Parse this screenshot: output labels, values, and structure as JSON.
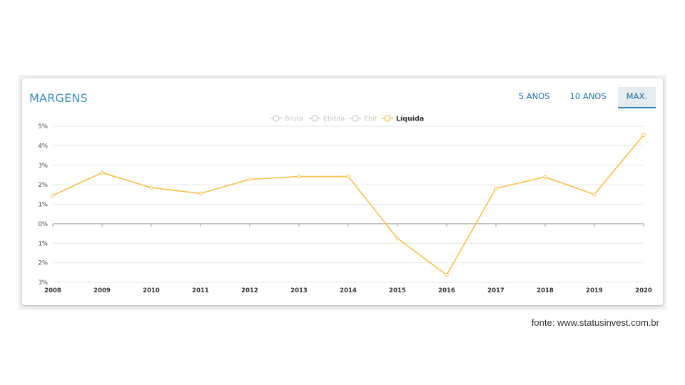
{
  "header": {
    "title": "MARGENS"
  },
  "tabs": [
    {
      "label": "5 ANOS",
      "active": false
    },
    {
      "label": "10 ANOS",
      "active": false
    },
    {
      "label": "MAX.",
      "active": true
    }
  ],
  "source": "fonte: www.statusinvest.com.br",
  "colors": {
    "accent": "#3a8fb7",
    "series_active": "#f7be4a",
    "series_inactive": "#cccccc"
  },
  "chart_data": {
    "type": "line",
    "title": "",
    "xlabel": "",
    "ylabel": "",
    "x": [
      "2008",
      "2009",
      "2010",
      "2011",
      "2012",
      "2013",
      "2014",
      "2015",
      "2016",
      "2017",
      "2018",
      "2019",
      "2020"
    ],
    "y_ticks": [
      5,
      4,
      3,
      2,
      1,
      0,
      -1,
      -2,
      -3
    ],
    "y_tick_labels": [
      "5%",
      "4%",
      "3%",
      "2%",
      "1%",
      "0%",
      "1%",
      "2%",
      "3%"
    ],
    "ylim": [
      -3,
      5
    ],
    "grid": true,
    "legend_position": "top-center",
    "legend": [
      {
        "name": "Bruta",
        "active": false
      },
      {
        "name": "Ebitda",
        "active": false
      },
      {
        "name": "Ebit",
        "active": false
      },
      {
        "name": "Líquida",
        "active": true
      }
    ],
    "series": [
      {
        "name": "Líquida",
        "values": [
          1.45,
          2.62,
          1.85,
          1.55,
          2.28,
          2.42,
          2.43,
          -0.75,
          -2.62,
          1.82,
          2.4,
          1.5,
          4.55
        ]
      }
    ]
  }
}
